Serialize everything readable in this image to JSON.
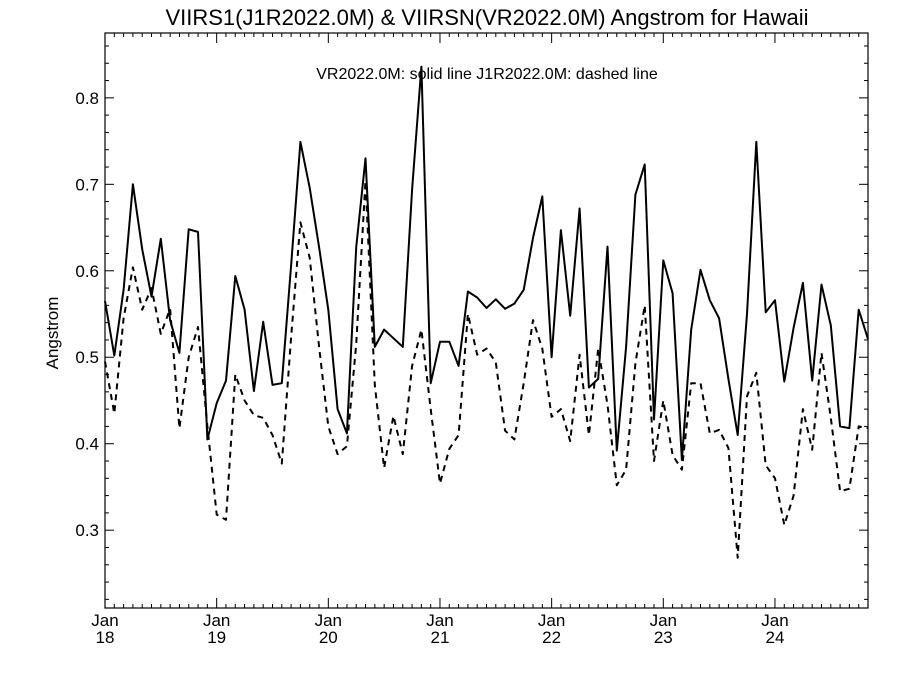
{
  "chart_data": {
    "type": "line",
    "title": "VIIRS1(J1R2022.0M) & VIIRSN(VR2022.0M)  Angstrom for Hawaii",
    "annotation": "VR2022.0M: solid line   J1R2022.0M: dashed line",
    "ylabel": "Angstrom",
    "xlabel": "",
    "ylim": [
      0.21,
      0.875
    ],
    "yticks": [
      0.3,
      0.4,
      0.5,
      0.6,
      0.7,
      0.8
    ],
    "ytick_labels": [
      "0.3",
      "0.4",
      "0.5",
      "0.6",
      "0.7",
      "0.8"
    ],
    "xlim": [
      2018.0,
      2024.8333
    ],
    "xticks": [
      {
        "x": 2018,
        "month": "Jan",
        "year": "18"
      },
      {
        "x": 2019,
        "month": "Jan",
        "year": "19"
      },
      {
        "x": 2020,
        "month": "Jan",
        "year": "20"
      },
      {
        "x": 2021,
        "month": "Jan",
        "year": "21"
      },
      {
        "x": 2022,
        "month": "Jan",
        "year": "22"
      },
      {
        "x": 2023,
        "month": "Jan",
        "year": "23"
      },
      {
        "x": 2024,
        "month": "Jan",
        "year": "24"
      }
    ],
    "grid": false,
    "colors": {
      "line": "#000000",
      "frame": "#000000",
      "background": "#ffffff"
    },
    "series": [
      {
        "name": "VR2022.0M",
        "style": "solid",
        "x": [
          2018.0,
          2018.0833,
          2018.1667,
          2018.25,
          2018.3333,
          2018.4167,
          2018.5,
          2018.5833,
          2018.6667,
          2018.75,
          2018.8333,
          2018.9167,
          2019.0,
          2019.0833,
          2019.1667,
          2019.25,
          2019.3333,
          2019.4167,
          2019.5,
          2019.5833,
          2019.6667,
          2019.75,
          2019.8333,
          2019.9167,
          2020.0,
          2020.0833,
          2020.1667,
          2020.25,
          2020.3333,
          2020.4167,
          2020.5,
          2020.5833,
          2020.6667,
          2020.75,
          2020.8333,
          2020.9167,
          2021.0,
          2021.0833,
          2021.1667,
          2021.25,
          2021.3333,
          2021.4167,
          2021.5,
          2021.5833,
          2021.6667,
          2021.75,
          2021.8333,
          2021.9167,
          2022.0,
          2022.0833,
          2022.1667,
          2022.25,
          2022.3333,
          2022.4167,
          2022.5,
          2022.5833,
          2022.6667,
          2022.75,
          2022.8333,
          2022.9167,
          2023.0,
          2023.0833,
          2023.1667,
          2023.25,
          2023.3333,
          2023.4167,
          2023.5,
          2023.5833,
          2023.6667,
          2023.75,
          2023.8333,
          2023.9167,
          2024.0,
          2024.0833,
          2024.1667,
          2024.25,
          2024.3333,
          2024.4167,
          2024.5,
          2024.5833,
          2024.6667,
          2024.75,
          2024.8333
        ],
        "values": [
          0.565,
          0.502,
          0.578,
          0.7,
          0.625,
          0.57,
          0.637,
          0.543,
          0.505,
          0.648,
          0.645,
          0.405,
          0.447,
          0.473,
          0.594,
          0.555,
          0.461,
          0.541,
          0.468,
          0.47,
          0.606,
          0.749,
          0.696,
          0.628,
          0.555,
          0.44,
          0.412,
          0.627,
          0.73,
          0.512,
          0.532,
          0.522,
          0.512,
          0.694,
          0.836,
          0.47,
          0.518,
          0.518,
          0.49,
          0.576,
          0.569,
          0.557,
          0.567,
          0.556,
          0.562,
          0.578,
          0.638,
          0.686,
          0.5,
          0.647,
          0.548,
          0.672,
          0.465,
          0.475,
          0.628,
          0.392,
          0.512,
          0.688,
          0.723,
          0.428,
          0.612,
          0.574,
          0.381,
          0.532,
          0.601,
          0.566,
          0.545,
          0.475,
          0.41,
          0.55,
          0.749,
          0.552,
          0.566,
          0.472,
          0.534,
          0.586,
          0.473,
          0.584,
          0.537,
          0.42,
          0.418,
          0.555,
          0.521
        ]
      },
      {
        "name": "J1R2022.0M",
        "style": "dashed",
        "x": [
          2018.0,
          2018.0833,
          2018.1667,
          2018.25,
          2018.3333,
          2018.4167,
          2018.5,
          2018.5833,
          2018.6667,
          2018.75,
          2018.8333,
          2018.9167,
          2019.0,
          2019.0833,
          2019.1667,
          2019.25,
          2019.3333,
          2019.4167,
          2019.5,
          2019.5833,
          2019.6667,
          2019.75,
          2019.8333,
          2019.9167,
          2020.0,
          2020.0833,
          2020.1667,
          2020.25,
          2020.3333,
          2020.4167,
          2020.5,
          2020.5833,
          2020.6667,
          2020.75,
          2020.8333,
          2020.9167,
          2021.0,
          2021.0833,
          2021.1667,
          2021.25,
          2021.3333,
          2021.4167,
          2021.5,
          2021.5833,
          2021.6667,
          2021.75,
          2021.8333,
          2021.9167,
          2022.0,
          2022.0833,
          2022.1667,
          2022.25,
          2022.3333,
          2022.4167,
          2022.5,
          2022.5833,
          2022.6667,
          2022.75,
          2022.8333,
          2022.9167,
          2023.0,
          2023.0833,
          2023.1667,
          2023.25,
          2023.3333,
          2023.4167,
          2023.5,
          2023.5833,
          2023.6667,
          2023.75,
          2023.8333,
          2023.9167,
          2024.0,
          2024.0833,
          2024.1667,
          2024.25,
          2024.3333,
          2024.4167,
          2024.5,
          2024.5833,
          2024.6667,
          2024.75,
          2024.8333
        ],
        "values": [
          0.495,
          0.435,
          0.545,
          0.604,
          0.555,
          0.58,
          0.527,
          0.556,
          0.418,
          0.5,
          0.535,
          0.42,
          0.318,
          0.312,
          0.48,
          0.45,
          0.433,
          0.43,
          0.41,
          0.377,
          0.523,
          0.656,
          0.615,
          0.513,
          0.42,
          0.388,
          0.397,
          0.515,
          0.704,
          0.468,
          0.372,
          0.432,
          0.388,
          0.49,
          0.532,
          0.44,
          0.354,
          0.394,
          0.41,
          0.55,
          0.503,
          0.51,
          0.494,
          0.415,
          0.405,
          0.47,
          0.543,
          0.51,
          0.431,
          0.44,
          0.403,
          0.503,
          0.41,
          0.51,
          0.445,
          0.352,
          0.37,
          0.493,
          0.56,
          0.38,
          0.45,
          0.387,
          0.37,
          0.47,
          0.47,
          0.412,
          0.416,
          0.395,
          0.268,
          0.455,
          0.482,
          0.375,
          0.36,
          0.306,
          0.34,
          0.44,
          0.393,
          0.505,
          0.43,
          0.345,
          0.348,
          0.42,
          0.418
        ]
      }
    ]
  }
}
